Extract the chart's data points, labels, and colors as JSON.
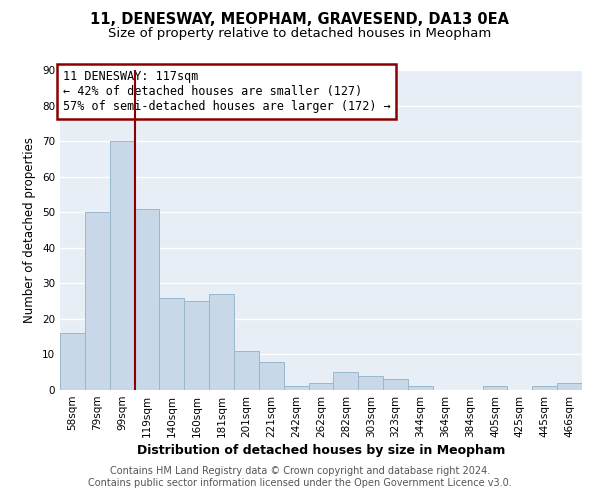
{
  "title": "11, DENESWAY, MEOPHAM, GRAVESEND, DA13 0EA",
  "subtitle": "Size of property relative to detached houses in Meopham",
  "xlabel": "Distribution of detached houses by size in Meopham",
  "ylabel": "Number of detached properties",
  "bar_color": "#c8d8e8",
  "bar_edge_color": "#9ab8cc",
  "background_color": "#e8eef5",
  "grid_color": "#ffffff",
  "categories": [
    "58sqm",
    "79sqm",
    "99sqm",
    "119sqm",
    "140sqm",
    "160sqm",
    "181sqm",
    "201sqm",
    "221sqm",
    "242sqm",
    "262sqm",
    "282sqm",
    "303sqm",
    "323sqm",
    "344sqm",
    "364sqm",
    "384sqm",
    "405sqm",
    "425sqm",
    "445sqm",
    "466sqm"
  ],
  "values": [
    16,
    50,
    70,
    51,
    26,
    25,
    27,
    11,
    8,
    1,
    2,
    5,
    4,
    3,
    1,
    0,
    0,
    1,
    0,
    1,
    2
  ],
  "ylim": [
    0,
    90
  ],
  "yticks": [
    0,
    10,
    20,
    30,
    40,
    50,
    60,
    70,
    80,
    90
  ],
  "vline_color": "#8b0000",
  "annotation_line1": "11 DENESWAY: 117sqm",
  "annotation_line2": "← 42% of detached houses are smaller (127)",
  "annotation_line3": "57% of semi-detached houses are larger (172) →",
  "annotation_box_color": "#8b0000",
  "footer_line1": "Contains HM Land Registry data © Crown copyright and database right 2024.",
  "footer_line2": "Contains public sector information licensed under the Open Government Licence v3.0.",
  "title_fontsize": 10.5,
  "subtitle_fontsize": 9.5,
  "xlabel_fontsize": 9,
  "ylabel_fontsize": 8.5,
  "tick_fontsize": 7.5,
  "footer_fontsize": 7,
  "annotation_fontsize": 8.5
}
